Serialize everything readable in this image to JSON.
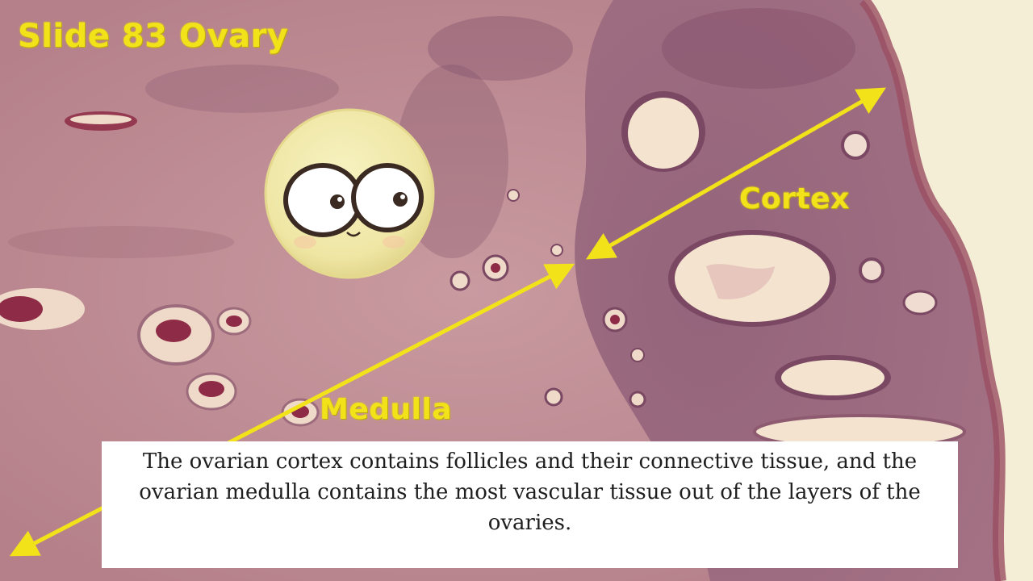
{
  "slide": {
    "title": "Slide 83 Ovary",
    "labels": {
      "cortex": "Cortex",
      "medulla": "Medulla"
    },
    "caption": "The ovarian cortex contains follicles and their connective tissue, and the ovarian medulla contains the most vascular tissue out of the layers of the ovaries.",
    "mascot": "cartoon-egg-cell-with-eyes"
  },
  "colors": {
    "tissue_base": "#b87d86",
    "tissue_dark": "#7a4a62",
    "cortex_stain": "#8c5a74",
    "follicle_fill": "#f3e3cf",
    "label_yellow": "#f2e21a",
    "background_right": "#f5eed6",
    "mascot_fill": "#f4eeb0"
  }
}
